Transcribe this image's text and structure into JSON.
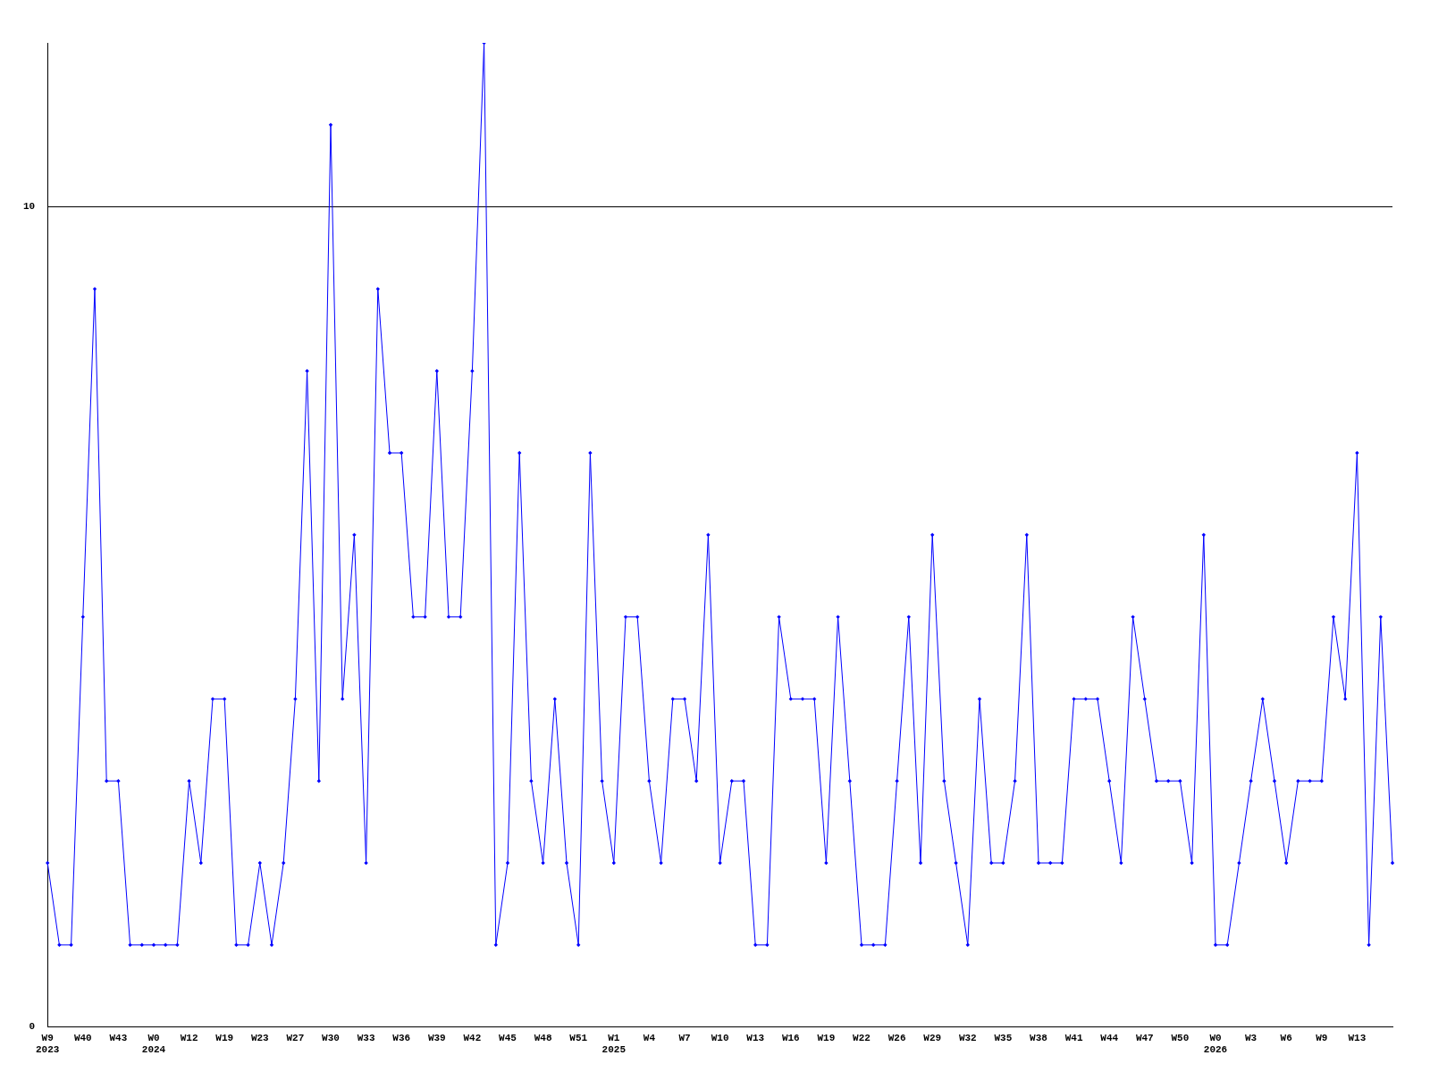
{
  "chart_data": {
    "type": "line",
    "categories": [
      "W9\n2023",
      null,
      null,
      "W40",
      null,
      null,
      "W43",
      null,
      null,
      "W0\n2024",
      null,
      null,
      "W12",
      null,
      null,
      "W19",
      null,
      null,
      "W23",
      null,
      null,
      "W27",
      null,
      null,
      "W30",
      null,
      null,
      "W33",
      null,
      null,
      "W36",
      null,
      null,
      "W39",
      null,
      null,
      "W42",
      null,
      null,
      "W45",
      null,
      null,
      "W48",
      null,
      null,
      "W51",
      null,
      null,
      "W1\n2025",
      null,
      null,
      "W4",
      null,
      null,
      "W7",
      null,
      null,
      "W10",
      null,
      null,
      "W13",
      null,
      null,
      "W16",
      null,
      null,
      "W19",
      null,
      null,
      "W22",
      null,
      null,
      "W26",
      null,
      null,
      "W29",
      null,
      null,
      "W32",
      null,
      null,
      "W35",
      null,
      null,
      "W38",
      null,
      null,
      "W41",
      null,
      null,
      "W44",
      null,
      null,
      "W47",
      null,
      null,
      "W50",
      null,
      null,
      "W0\n2026",
      null,
      null,
      "W3",
      null,
      null,
      "W6",
      null,
      null,
      "W9",
      null,
      null,
      "W13",
      null,
      null,
      null
    ],
    "series": [
      {
        "color": "#0000ff",
        "values": [
          2,
          1,
          1,
          5,
          9,
          3,
          3,
          1,
          1,
          1,
          1,
          1,
          3,
          2,
          4,
          4,
          1,
          1,
          2,
          1,
          2,
          4,
          8,
          3,
          11,
          4,
          6,
          2,
          9,
          7,
          7,
          5,
          5,
          8,
          5,
          5,
          8,
          12,
          1,
          2,
          7,
          3,
          2,
          4,
          2,
          1,
          7,
          3,
          2,
          5,
          5,
          3,
          2,
          4,
          4,
          3,
          6,
          2,
          3,
          3,
          1,
          1,
          5,
          4,
          4,
          4,
          2,
          5,
          3,
          1,
          1,
          1,
          3,
          5,
          2,
          6,
          3,
          2,
          1,
          4,
          2,
          2,
          3,
          6,
          2,
          2,
          2,
          4,
          4,
          4,
          3,
          2,
          5,
          4,
          3,
          3,
          3,
          2,
          6,
          1,
          1,
          2,
          3,
          4,
          3,
          2,
          3,
          3,
          3,
          5,
          4,
          7,
          1,
          5,
          2
        ]
      }
    ],
    "ylim": [
      0,
      12
    ],
    "yticks": [
      0,
      10
    ],
    "grid": "y",
    "legend": false,
    "marker": "diamond",
    "line_style": "solid"
  }
}
